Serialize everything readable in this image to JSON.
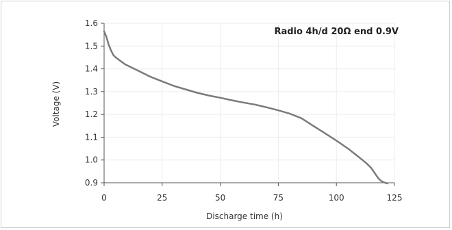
{
  "chart_data": {
    "type": "line",
    "title": "Radio 4h/d 20Ω end 0.9V",
    "xlabel": "Discharge time (h)",
    "ylabel": "Voltage (V)",
    "xlim": [
      0,
      125
    ],
    "ylim": [
      0.9,
      1.6
    ],
    "xticks": [
      0,
      25,
      50,
      75,
      100,
      125
    ],
    "yticks": [
      0.9,
      1.0,
      1.1,
      1.2,
      1.3,
      1.4,
      1.5,
      1.6
    ],
    "xtick_labels": [
      "0",
      "25",
      "50",
      "75",
      "100",
      "125"
    ],
    "ytick_labels": [
      "0.9",
      "1.0",
      "1.1",
      "1.2",
      "1.3",
      "1.4",
      "1.5",
      "1.6"
    ],
    "grid": true,
    "series": [
      {
        "color": "#7a7a7a",
        "x": [
          0,
          1,
          2,
          3,
          4,
          5,
          7,
          9,
          12,
          15,
          20,
          25,
          30,
          35,
          40,
          45,
          50,
          55,
          60,
          65,
          70,
          75,
          80,
          85,
          90,
          95,
          100,
          105,
          110,
          113,
          115,
          117,
          118,
          119,
          120,
          121,
          122
        ],
        "y": [
          1.565,
          1.54,
          1.505,
          1.48,
          1.46,
          1.45,
          1.435,
          1.42,
          1.405,
          1.39,
          1.365,
          1.345,
          1.325,
          1.31,
          1.295,
          1.283,
          1.273,
          1.262,
          1.252,
          1.243,
          1.231,
          1.218,
          1.203,
          1.183,
          1.15,
          1.118,
          1.085,
          1.05,
          1.01,
          0.985,
          0.965,
          0.935,
          0.92,
          0.91,
          0.904,
          0.9,
          0.897
        ]
      }
    ]
  }
}
